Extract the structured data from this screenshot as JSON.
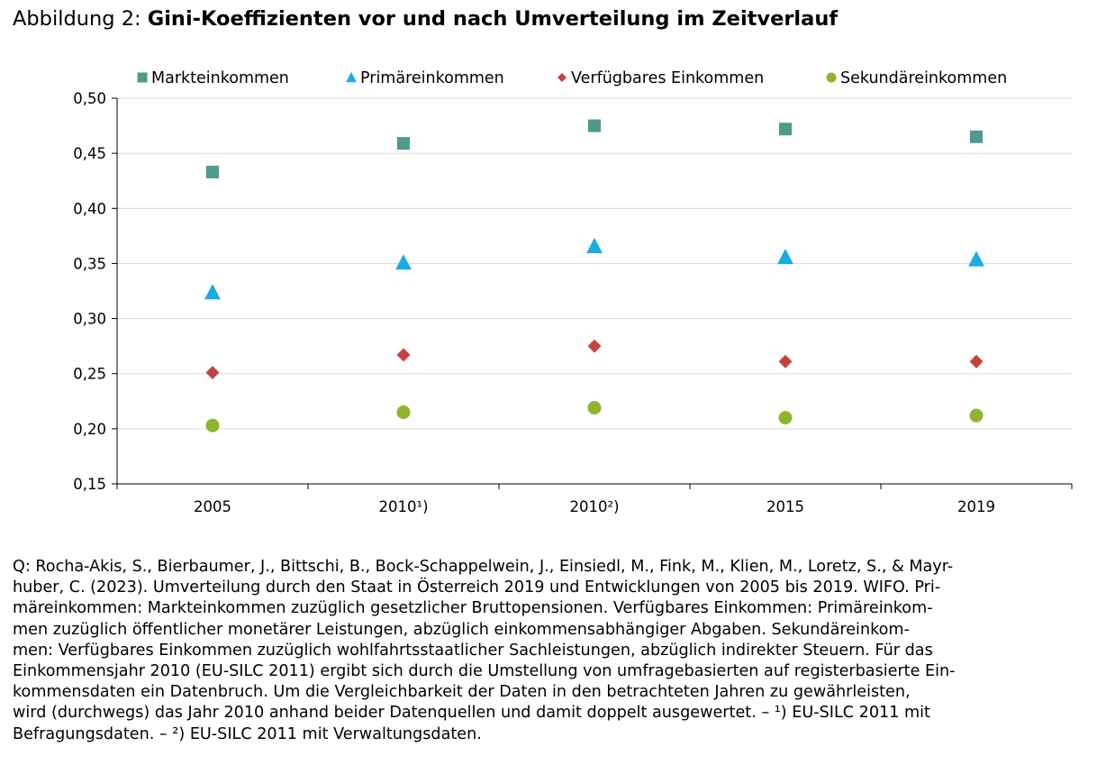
{
  "figure": {
    "title_prefix": "Abbildung 2: ",
    "title_main": "Gini-Koeffizienten vor und nach Umverteilung im Zeitverlauf"
  },
  "chart_data": {
    "type": "scatter",
    "categories": [
      "2005",
      "2010¹)",
      "2010²)",
      "2015",
      "2019"
    ],
    "series": [
      {
        "name": "Markteinkommen",
        "marker": "square",
        "color": "#4E9A8C",
        "values": [
          0.433,
          0.459,
          0.475,
          0.472,
          0.465
        ]
      },
      {
        "name": "Primäreinkommen",
        "marker": "triangle",
        "color": "#1AACE3",
        "values": [
          0.324,
          0.351,
          0.366,
          0.356,
          0.354
        ]
      },
      {
        "name": "Verfügbares Einkommen",
        "marker": "diamond",
        "color": "#C9413F",
        "values": [
          0.251,
          0.267,
          0.275,
          0.261,
          0.261
        ]
      },
      {
        "name": "Sekundäreinkommen",
        "marker": "circle",
        "color": "#8DB52E",
        "values": [
          0.203,
          0.215,
          0.219,
          0.21,
          0.212
        ]
      }
    ],
    "ylim": [
      0.15,
      0.5
    ],
    "yticks": [
      "0,15",
      "0,20",
      "0,25",
      "0,30",
      "0,35",
      "0,40",
      "0,45",
      "0,50"
    ],
    "ytick_values": [
      0.15,
      0.2,
      0.25,
      0.3,
      0.35,
      0.4,
      0.45,
      0.5
    ],
    "xlabel": "",
    "ylabel": "",
    "grid": true,
    "legend_position": "top"
  },
  "source_lines": [
    "Q: Rocha-Akis, S., Bierbaumer, J., Bittschi, B., Bock-Schappelwein, J., Einsiedl, M., Fink, M., Klien, M., Loretz, S., & Mayr-",
    "huber, C. (2023). Umverteilung durch den Staat in Österreich 2019 und Entwicklungen von 2005 bis 2019. WIFO. Pri-",
    "märeinkommen: Markteinkommen zuzüglich gesetzlicher Bruttopensionen. Verfügbares Einkommen: Primäreinkom-",
    "men zuzüglich öffentlicher monetärer Leistungen, abzüglich einkommensabhängiger Abgaben. Sekundäreinkom-",
    "men: Verfügbares Einkommen zuzüglich wohlfahrtsstaatlicher Sachleistungen, abzüglich indirekter Steuern. Für das",
    "Einkommensjahr 2010 (EU-SILC 2011) ergibt sich durch die Umstellung von umfragebasierten auf registerbasierte Ein-",
    "kommensdaten ein Datenbruch. Um die Vergleichbarkeit der Daten in den betrachteten Jahren zu gewährleisten,",
    "wird (durchwegs) das Jahr 2010 anhand beider Datenquellen und damit doppelt ausgewertet. – ¹) EU-SILC 2011 mit",
    "Befragungsdaten. – ²) EU-SILC 2011 mit Verwaltungsdaten."
  ]
}
